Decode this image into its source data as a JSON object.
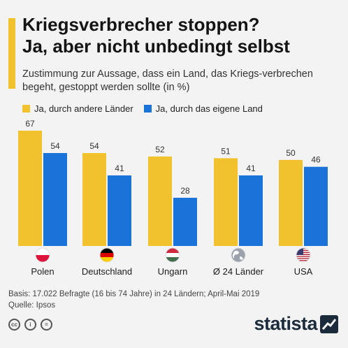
{
  "title_line1": "Kriegsverbrecher stoppen?",
  "title_line2": "Ja, aber nicht unbedingt selbst",
  "subtitle": "Zustimmung zur Aussage, dass ein Land, das Kriegs-verbrechen begeht, gestoppt werden sollte (in %)",
  "colors": {
    "accent": "#f2c12e",
    "series1": "#f2c12e",
    "series2": "#1a73d9",
    "background": "#f3f3f3"
  },
  "chart_data": {
    "type": "bar",
    "categories": [
      "Polen",
      "Deutschland",
      "Ungarn",
      "Ø 24 Länder",
      "USA"
    ],
    "flags": [
      "poland-flag-icon",
      "germany-flag-icon",
      "hungary-flag-icon",
      "globe-icon",
      "usa-flag-icon"
    ],
    "series": [
      {
        "name": "Ja, durch andere Länder",
        "values": [
          67,
          54,
          52,
          51,
          50
        ]
      },
      {
        "name": "Ja, durch das eigene Land",
        "values": [
          54,
          41,
          28,
          41,
          46
        ]
      }
    ],
    "ylim": [
      0,
      67
    ],
    "grid": false,
    "legend": "top-left"
  },
  "footer": {
    "basis": "Basis: 17.022 Befragte (16 bis 74 Jahre) in 24 Ländern; April-Mai 2019",
    "source": "Quelle: Ipsos"
  },
  "brand": "statista",
  "license_icons": [
    "cc-icon",
    "attribution-icon",
    "noderivs-icon"
  ]
}
